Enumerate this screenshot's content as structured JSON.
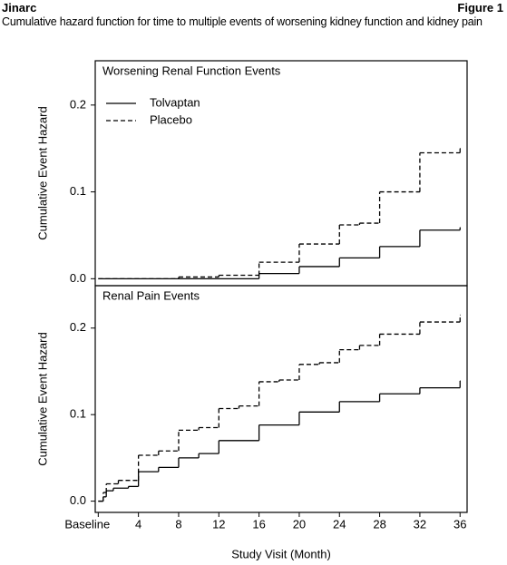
{
  "header": {
    "left": "Jinarc",
    "right": "Figure 1",
    "subtitle": "Cumulative hazard function for time to multiple events of worsening kidney function and kidney pain"
  },
  "chart_data": [
    {
      "type": "step",
      "title": "Worsening Renal Function Events",
      "ylabel": "Cumulative Event Hazard",
      "xlim": [
        -0.3,
        36.7
      ],
      "ylim": [
        -0.008,
        0.251
      ],
      "yticks": [
        {
          "value": 0,
          "label": "0.0"
        },
        0.1,
        0.2
      ],
      "legend": "upper left",
      "series": [
        {
          "name": "Tolvaptan",
          "color": "#000000",
          "style": "solid",
          "x": [
            0,
            16,
            20,
            24,
            28,
            32,
            36
          ],
          "values": [
            0,
            0.006,
            0.014,
            0.024,
            0.037,
            0.056,
            0.059
          ]
        },
        {
          "name": "Placebo",
          "color": "#000000",
          "style": "dashed",
          "x": [
            0,
            8,
            12,
            16,
            20,
            24,
            26,
            28,
            32,
            36
          ],
          "values": [
            0,
            0.002,
            0.004,
            0.019,
            0.04,
            0.062,
            0.064,
            0.1,
            0.145,
            0.15
          ]
        }
      ]
    },
    {
      "type": "step",
      "title": "Renal Pain Events",
      "ylabel": "Cumulative Event Hazard",
      "xlabel": "Study Visit (Month)",
      "xlim": [
        -0.3,
        36.7
      ],
      "ylim": [
        -0.013,
        0.249
      ],
      "xticks": [
        {
          "value": 0,
          "label": "Baseline"
        },
        4,
        8,
        12,
        16,
        20,
        24,
        28,
        32,
        36
      ],
      "yticks": [
        {
          "value": 0,
          "label": "0.0"
        },
        0.1,
        0.2
      ],
      "series": [
        {
          "name": "Tolvaptan",
          "color": "#000000",
          "style": "solid",
          "x": [
            0,
            0.5,
            0.8,
            1.5,
            3,
            4,
            6,
            8,
            10,
            12,
            16,
            20,
            24,
            28,
            32,
            36
          ],
          "values": [
            0,
            0.005,
            0.012,
            0.015,
            0.017,
            0.034,
            0.039,
            0.05,
            0.055,
            0.07,
            0.088,
            0.103,
            0.115,
            0.124,
            0.131,
            0.139
          ]
        },
        {
          "name": "Placebo",
          "color": "#000000",
          "style": "dashed",
          "x": [
            0,
            0.5,
            0.8,
            2,
            4,
            6,
            8,
            10,
            12,
            14,
            16,
            18,
            20,
            22,
            24,
            26,
            28,
            32,
            36
          ],
          "values": [
            0,
            0.01,
            0.02,
            0.024,
            0.053,
            0.058,
            0.082,
            0.085,
            0.107,
            0.11,
            0.138,
            0.14,
            0.158,
            0.16,
            0.175,
            0.18,
            0.193,
            0.207,
            0.215
          ]
        }
      ]
    }
  ]
}
